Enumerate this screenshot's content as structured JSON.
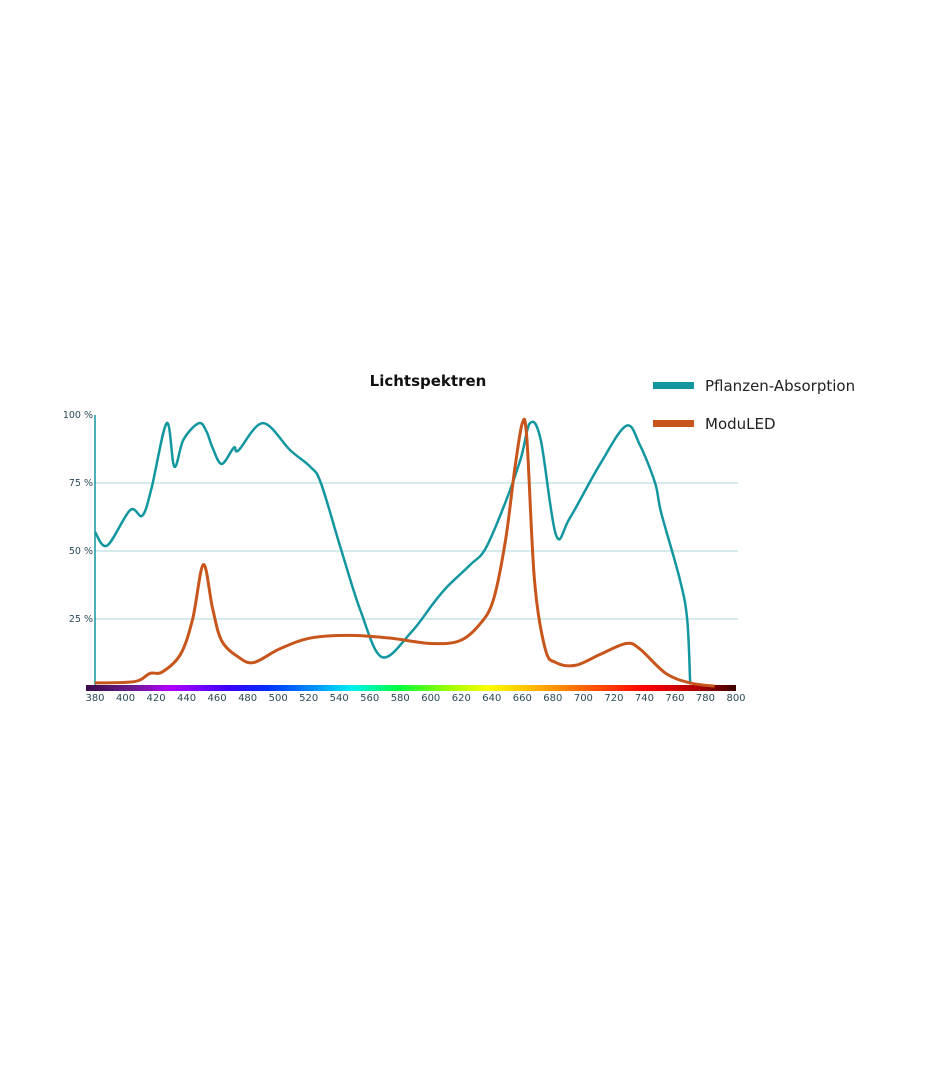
{
  "chart_data": {
    "type": "line",
    "title": "Lichtspektren",
    "xlabel": "",
    "ylabel": "",
    "xlim": [
      380,
      800
    ],
    "ylim": [
      0,
      100
    ],
    "x_ticks": [
      380,
      400,
      420,
      440,
      460,
      480,
      500,
      520,
      540,
      560,
      580,
      600,
      620,
      640,
      660,
      680,
      700,
      720,
      740,
      760,
      780,
      800
    ],
    "y_ticks": [
      {
        "value": 100,
        "label": "100 %"
      },
      {
        "value": 75,
        "label": "75 %"
      },
      {
        "value": 50,
        "label": "50 %"
      },
      {
        "value": 25,
        "label": "25 %"
      }
    ],
    "grid": "horizontal",
    "legend_placement": "top-right",
    "spectrum_bar": true,
    "series": [
      {
        "name": "Pflanzen-Absorption",
        "color": "#12969f",
        "points": [
          [
            380,
            57
          ],
          [
            388,
            52
          ],
          [
            403,
            65
          ],
          [
            411,
            63
          ],
          [
            417,
            73
          ],
          [
            427,
            97
          ],
          [
            432,
            81
          ],
          [
            438,
            91
          ],
          [
            448,
            97
          ],
          [
            453,
            94
          ],
          [
            457,
            88
          ],
          [
            463,
            82
          ],
          [
            471,
            88
          ],
          [
            474,
            87
          ],
          [
            490,
            97
          ],
          [
            508,
            87
          ],
          [
            521,
            81
          ],
          [
            528,
            75
          ],
          [
            541,
            51
          ],
          [
            554,
            28
          ],
          [
            568,
            11
          ],
          [
            587,
            20
          ],
          [
            602,
            31
          ],
          [
            611,
            37
          ],
          [
            626,
            45
          ],
          [
            636,
            51
          ],
          [
            649,
            68
          ],
          [
            659,
            84
          ],
          [
            665,
            97
          ],
          [
            672,
            91
          ],
          [
            682,
            56
          ],
          [
            691,
            62
          ],
          [
            711,
            82
          ],
          [
            728,
            96
          ],
          [
            737,
            89
          ],
          [
            747,
            75
          ],
          [
            751,
            64
          ],
          [
            763,
            40
          ],
          [
            768,
            25
          ],
          [
            770,
            1
          ]
        ]
      },
      {
        "name": "ModuLED",
        "color": "#c8561c",
        "points": [
          [
            380,
            1.5
          ],
          [
            406,
            2
          ],
          [
            416,
            5
          ],
          [
            424,
            5.5
          ],
          [
            436,
            12
          ],
          [
            444,
            25
          ],
          [
            451,
            45
          ],
          [
            457,
            29
          ],
          [
            463,
            17
          ],
          [
            474,
            11
          ],
          [
            484,
            9
          ],
          [
            501,
            14
          ],
          [
            521,
            18
          ],
          [
            547,
            19
          ],
          [
            573,
            18
          ],
          [
            600,
            16
          ],
          [
            619,
            17
          ],
          [
            632,
            23
          ],
          [
            641,
            32
          ],
          [
            649,
            54
          ],
          [
            655,
            80
          ],
          [
            660,
            97
          ],
          [
            663,
            91
          ],
          [
            668,
            39
          ],
          [
            675,
            14
          ],
          [
            682,
            9
          ],
          [
            695,
            8
          ],
          [
            711,
            12
          ],
          [
            728,
            16
          ],
          [
            737,
            14
          ],
          [
            754,
            5
          ],
          [
            770,
            1.5
          ],
          [
            786,
            0.3
          ]
        ]
      }
    ]
  }
}
